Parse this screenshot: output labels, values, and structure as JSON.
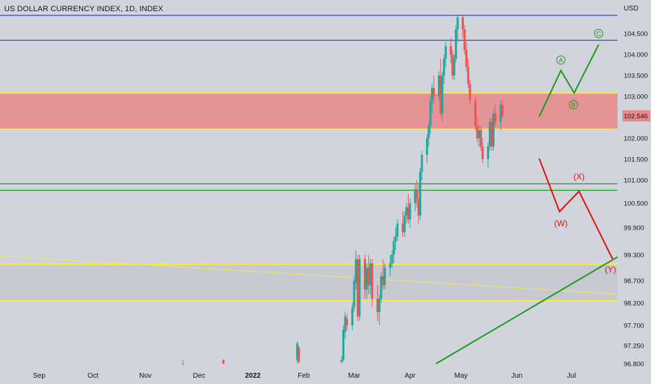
{
  "header": {
    "title": "US DOLLAR CURRENCY INDEX, 1D, INDEX",
    "currency": "USD"
  },
  "colors": {
    "background": "#d1d4dc",
    "up_candle": "#26a69a",
    "down_candle": "#ef5350",
    "blue_line": "#1e50c8",
    "yellow_line": "#ffeb3b",
    "green_line": "#1a9b1a",
    "red_zone": "#e8888a",
    "gray_zone": "#c5c8d0",
    "bull_wave": "#1a9b1a",
    "bear_wave": "#e01010",
    "last_price_bg": "#e8888a"
  },
  "chart_data": {
    "type": "candlestick",
    "title": "US DOLLAR CURRENCY INDEX, 1D, INDEX",
    "ylabel": "USD",
    "ylim": [
      96.8,
      105.0
    ],
    "y_ticks": [
      "104.500",
      "104.000",
      "103.500",
      "103.000",
      "102.546",
      "102.000",
      "101.500",
      "101.000",
      "100.500",
      "99.900",
      "99.300",
      "98.700",
      "98.200",
      "97.700",
      "97.250",
      "96.800"
    ],
    "x_ticks": [
      "Sep",
      "Oct",
      "Nov",
      "Dec",
      "2022",
      "Feb",
      "Mar",
      "Apr",
      "May",
      "Jun",
      "Jul"
    ],
    "last_price": "102.546",
    "horizontal_lines": [
      {
        "value": 104.95,
        "color": "blue"
      },
      {
        "value": 104.34,
        "color": "blue"
      },
      {
        "value": 103.08,
        "color": "yellow"
      },
      {
        "value": 102.22,
        "color": "yellow"
      },
      {
        "value": 100.92,
        "color": "green"
      },
      {
        "value": 100.78,
        "color": "green"
      },
      {
        "value": 99.08,
        "color": "yellow"
      },
      {
        "value": 98.25,
        "color": "yellow"
      }
    ],
    "zones": [
      {
        "from": 102.22,
        "to": 103.08,
        "color": "red"
      },
      {
        "from": 98.25,
        "to": 99.08,
        "color": "gray"
      }
    ],
    "candles": {
      "columns": [
        "date",
        "open",
        "high",
        "low",
        "close"
      ],
      "rows": [
        [
          "Nov 22",
          96.7,
          96.9,
          96.6,
          96.8
        ],
        [
          "Dec 15",
          96.9,
          96.9,
          96.7,
          96.75
        ],
        [
          "Jan 28",
          96.9,
          97.35,
          96.7,
          97.3
        ],
        [
          "Jan 29",
          97.2,
          97.25,
          96.8,
          96.85
        ],
        [
          "Feb 22",
          96.85,
          97.0,
          96.7,
          96.9
        ],
        [
          "Feb 23",
          96.9,
          97.7,
          96.85,
          97.6
        ],
        [
          "Feb 24",
          97.55,
          98.0,
          97.4,
          97.9
        ],
        [
          "Feb 25",
          97.85,
          97.95,
          97.6,
          97.7
        ],
        [
          "Feb 28",
          97.7,
          98.2,
          97.6,
          98.1
        ],
        [
          "Mar 1",
          98.1,
          98.8,
          98.0,
          98.7
        ],
        [
          "Mar 2",
          98.65,
          99.4,
          98.5,
          99.2
        ],
        [
          "Mar 3",
          99.2,
          99.3,
          97.8,
          97.9
        ],
        [
          "Mar 4",
          97.9,
          99.3,
          97.8,
          99.2
        ],
        [
          "Mar 7",
          99.2,
          99.3,
          98.3,
          98.5
        ],
        [
          "Mar 8",
          98.5,
          99.1,
          98.3,
          99.0
        ],
        [
          "Mar 9",
          99.0,
          99.3,
          98.4,
          98.6
        ],
        [
          "Mar 10",
          98.6,
          99.2,
          98.4,
          99.1
        ],
        [
          "Mar 11",
          99.1,
          99.2,
          98.1,
          98.3
        ],
        [
          "Mar 14",
          98.3,
          98.6,
          97.8,
          98.0
        ],
        [
          "Mar 15",
          98.0,
          98.4,
          97.7,
          98.3
        ],
        [
          "Mar 16",
          98.3,
          98.9,
          98.2,
          98.8
        ],
        [
          "Mar 17",
          98.8,
          99.2,
          98.5,
          98.6
        ],
        [
          "Mar 18",
          98.6,
          99.1,
          98.5,
          99.0
        ],
        [
          "Mar 21",
          99.0,
          99.3,
          98.8,
          99.1
        ],
        [
          "Mar 22",
          99.1,
          99.4,
          99.0,
          99.3
        ],
        [
          "Mar 23",
          99.3,
          99.7,
          99.1,
          99.6
        ],
        [
          "Mar 24",
          99.6,
          99.9,
          99.4,
          99.7
        ],
        [
          "Mar 25",
          99.7,
          100.1,
          99.6,
          100.0
        ],
        [
          "Mar 28",
          100.0,
          100.3,
          99.7,
          99.8
        ],
        [
          "Mar 29",
          99.8,
          100.3,
          99.7,
          100.2
        ],
        [
          "Mar 30",
          100.2,
          100.5,
          100.0,
          100.4
        ],
        [
          "Mar 31",
          100.4,
          100.7,
          100.0,
          100.1
        ],
        [
          "Apr 1",
          100.1,
          100.6,
          99.9,
          100.5
        ],
        [
          "Apr 4",
          100.5,
          100.9,
          100.3,
          100.8
        ],
        [
          "Apr 5",
          100.8,
          101.0,
          100.4,
          100.6
        ],
        [
          "Apr 6",
          100.6,
          100.9,
          100.0,
          100.2
        ],
        [
          "Apr 7",
          100.2,
          101.3,
          100.1,
          101.2
        ],
        [
          "Apr 8",
          101.2,
          101.7,
          101.0,
          101.6
        ],
        [
          "Apr 11",
          101.6,
          102.1,
          101.4,
          102.0
        ],
        [
          "Apr 12",
          102.0,
          102.4,
          101.8,
          102.3
        ],
        [
          "Apr 13",
          102.3,
          103.0,
          102.1,
          102.9
        ],
        [
          "Apr 14",
          102.9,
          103.3,
          102.6,
          103.2
        ],
        [
          "Apr 15",
          103.2,
          103.5,
          102.8,
          103.0
        ],
        [
          "Apr 18",
          103.0,
          103.6,
          102.9,
          103.5
        ],
        [
          "Apr 19",
          103.5,
          103.9,
          102.5,
          102.6
        ],
        [
          "Apr 20",
          102.6,
          103.6,
          102.4,
          103.5
        ],
        [
          "Apr 21",
          103.5,
          104.0,
          103.3,
          103.9
        ],
        [
          "Apr 22",
          103.9,
          104.3,
          103.7,
          104.2
        ],
        [
          "Apr 25",
          104.2,
          104.4,
          103.8,
          104.0
        ],
        [
          "Apr 26",
          104.0,
          104.1,
          103.4,
          103.5
        ],
        [
          "Apr 27",
          103.5,
          104.0,
          103.4,
          103.9
        ],
        [
          "Apr 28",
          103.9,
          104.7,
          103.8,
          104.6
        ],
        [
          "Apr 29",
          104.6,
          105.0,
          104.3,
          104.9
        ],
        [
          "May 2",
          104.9,
          105.0,
          104.4,
          104.6
        ],
        [
          "May 3",
          104.6,
          104.7,
          104.0,
          104.1
        ],
        [
          "May 4",
          104.1,
          104.3,
          103.6,
          103.7
        ],
        [
          "May 5",
          103.7,
          103.9,
          103.2,
          103.3
        ],
        [
          "May 6",
          103.3,
          103.4,
          102.8,
          102.9
        ],
        [
          "May 9",
          102.9,
          103.0,
          102.2,
          102.3
        ],
        [
          "May 10",
          102.3,
          102.5,
          101.9,
          102.0
        ],
        [
          "May 11",
          102.0,
          102.3,
          101.8,
          102.2
        ],
        [
          "May 12",
          102.2,
          102.3,
          101.7,
          101.8
        ],
        [
          "May 13",
          101.8,
          102.0,
          101.4,
          101.5
        ],
        [
          "May 16",
          101.5,
          101.9,
          101.3,
          101.8
        ],
        [
          "May 17",
          101.8,
          102.5,
          101.7,
          102.4
        ],
        [
          "May 18",
          102.4,
          102.5,
          101.7,
          101.8
        ],
        [
          "May 19",
          101.8,
          102.7,
          101.7,
          102.6
        ],
        [
          "May 20",
          102.6,
          102.8,
          102.3,
          102.4
        ],
        [
          "May 23",
          102.4,
          102.9,
          102.2,
          102.8
        ],
        [
          "May 24",
          102.8,
          102.9,
          102.5,
          102.546
        ]
      ]
    },
    "annotations": [
      {
        "label": "A",
        "style": "circled",
        "color": "green"
      },
      {
        "label": "B",
        "style": "circled",
        "color": "green"
      },
      {
        "label": "C",
        "style": "circled",
        "color": "green"
      },
      {
        "label": "(W)",
        "color": "red"
      },
      {
        "label": "(X)",
        "color": "red"
      },
      {
        "label": "(Y)",
        "color": "red"
      }
    ]
  }
}
